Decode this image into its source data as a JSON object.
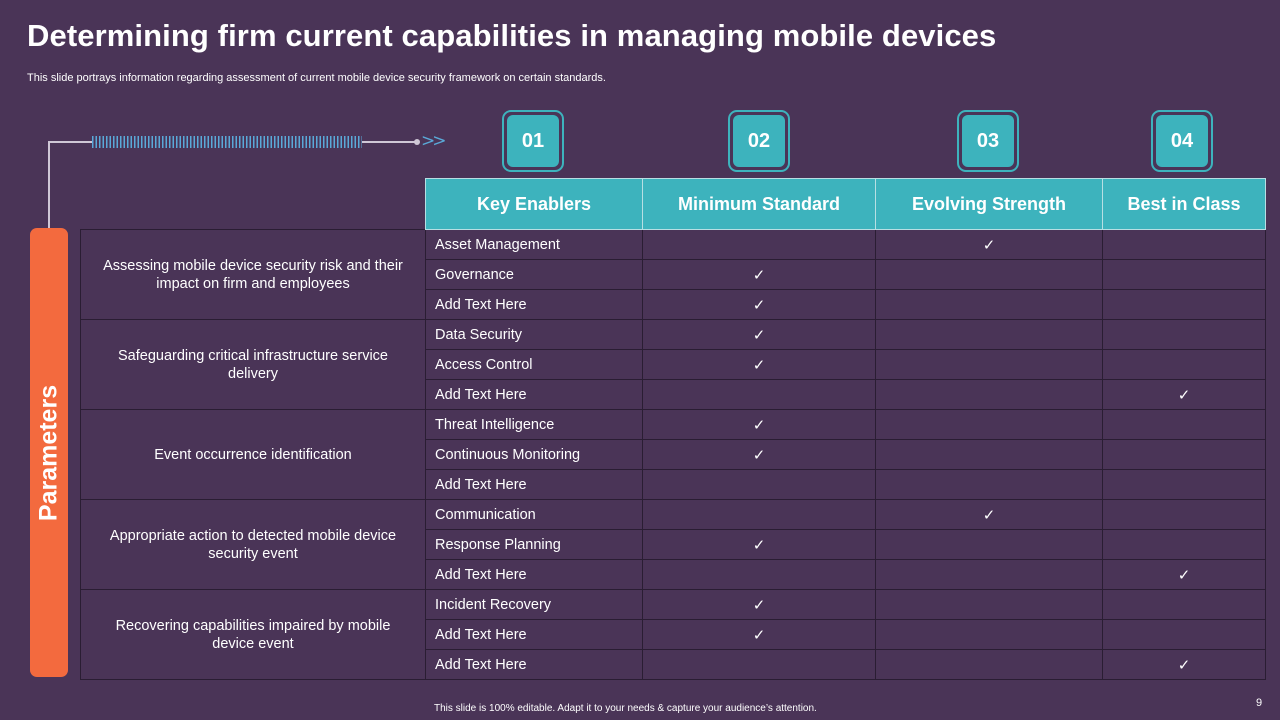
{
  "title": "Determining firm current capabilities in managing mobile devices",
  "subtitle": "This slide portrays information regarding assessment of current mobile device security framework on certain standards.",
  "badges": [
    "01",
    "02",
    "03",
    "04"
  ],
  "side_label": "Parameters",
  "headers": [
    "Key Enablers",
    "Minimum Standard",
    "Evolving Strength",
    "Best in Class"
  ],
  "check_symbol": "✓",
  "groups": [
    {
      "parameter": "Assessing mobile device security risk and their impact on firm and employees",
      "rows": [
        {
          "enabler": "Asset Management",
          "level": "Evolving Strength"
        },
        {
          "enabler": "Governance",
          "level": "Minimum Standard"
        },
        {
          "enabler": "Add Text Here",
          "level": "Minimum Standard"
        }
      ]
    },
    {
      "parameter": "Safeguarding critical infrastructure service delivery",
      "rows": [
        {
          "enabler": "Data Security",
          "level": "Minimum Standard"
        },
        {
          "enabler": "Access Control",
          "level": "Minimum Standard"
        },
        {
          "enabler": "Add Text Here",
          "level": "Best in Class"
        }
      ]
    },
    {
      "parameter": "Event occurrence identification",
      "rows": [
        {
          "enabler": "Threat Intelligence",
          "level": "Minimum Standard"
        },
        {
          "enabler": "Continuous Monitoring",
          "level": "Minimum Standard"
        },
        {
          "enabler": "Add Text Here",
          "level": ""
        }
      ]
    },
    {
      "parameter": "Appropriate action to detected mobile device security event",
      "rows": [
        {
          "enabler": "Communication",
          "level": "Evolving Strength"
        },
        {
          "enabler": "Response Planning",
          "level": "Minimum Standard"
        },
        {
          "enabler": "Add Text Here",
          "level": "Best in Class"
        }
      ]
    },
    {
      "parameter": "Recovering capabilities impaired by mobile device event",
      "rows": [
        {
          "enabler": "Incident Recovery",
          "level": "Minimum Standard"
        },
        {
          "enabler": "Add Text Here",
          "level": "Minimum Standard"
        },
        {
          "enabler": "Add Text Here",
          "level": "Best in Class"
        }
      ]
    }
  ],
  "footer": "This slide is 100% editable. Adapt it to your needs & capture your audience’s attention.",
  "page_number": "9",
  "colors": {
    "background": "#4a3457",
    "accent_teal": "#3db3bd",
    "accent_orange": "#f36a3e",
    "connector_blue": "#5aa9d8"
  }
}
